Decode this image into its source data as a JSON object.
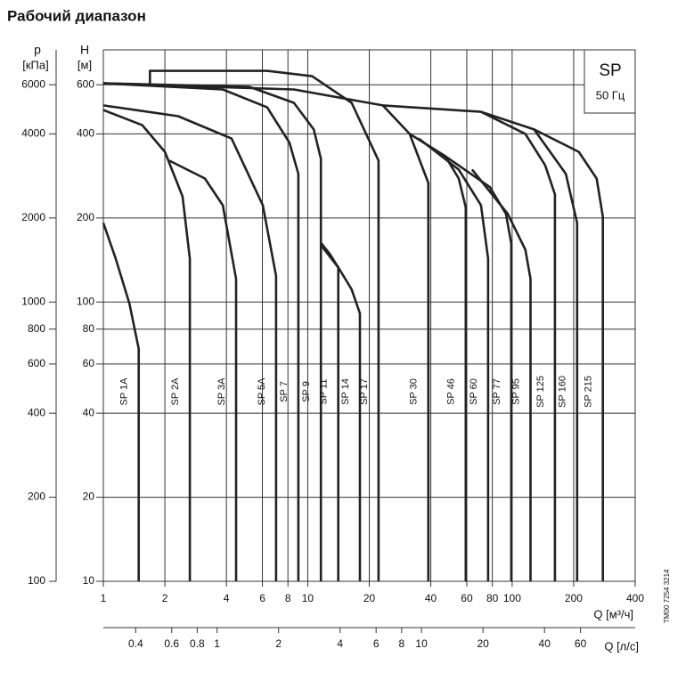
{
  "chart_data": {
    "type": "line",
    "title": "Рабочий диапазон",
    "x_scale": "log",
    "y_scale": "log",
    "grid": true,
    "color": "#222222",
    "x_label": "Q [м³/ч]",
    "x2_label": "Q [л/с]",
    "y_label": "H",
    "y_unit": "[м]",
    "y2_label": "p",
    "y2_unit": "[кПа]",
    "legend_box": {
      "title": "SP",
      "subtitle": "50 Гц"
    },
    "note": "TM00 7254 3214",
    "xlim": [
      1,
      400
    ],
    "xticks": [
      1,
      2,
      4,
      6,
      8,
      10,
      20,
      40,
      60,
      80,
      100,
      200,
      400
    ],
    "x2lim": [
      0.2778,
      111.1
    ],
    "x2ticks": [
      0.4,
      0.6,
      0.8,
      1,
      2,
      4,
      6,
      8,
      10,
      20,
      40,
      60
    ],
    "ylim": [
      10,
      800
    ],
    "yticks": [
      10,
      20,
      40,
      60,
      80,
      100,
      200,
      400,
      600
    ],
    "y2lim": [
      100,
      8000
    ],
    "y2ticks": [
      100,
      200,
      400,
      600,
      800,
      1000,
      2000,
      4000,
      6000
    ],
    "series": [
      {
        "name": "SP 1A",
        "x": [
          1,
          1.15,
          1.34,
          1.49,
          1.49
        ],
        "values": [
          192,
          143,
          99,
          68,
          10
        ]
      },
      {
        "name": "SP 2A",
        "x": [
          1,
          1.55,
          2.0,
          2.44,
          2.65,
          2.65
        ],
        "values": [
          487,
          430,
          345,
          239,
          143,
          10
        ]
      },
      {
        "name": "SP 3A",
        "x": [
          2.1,
          3.14,
          3.84,
          4.46,
          4.46
        ],
        "values": [
          321,
          277,
          222,
          121,
          10
        ]
      },
      {
        "name": "SP 5A",
        "x": [
          1,
          2.32,
          4.24,
          6.03,
          7.0,
          7.0
        ],
        "values": [
          506,
          463,
          385,
          222,
          124,
          10
        ]
      },
      {
        "name": "SP 7",
        "x": [
          1,
          3.84,
          6.33,
          8.14,
          9.0,
          9.0
        ],
        "values": [
          607,
          577,
          498,
          372,
          288,
          10
        ]
      },
      {
        "name": "SP 9",
        "x": [
          1,
          5.18,
          8.56,
          10.7,
          11.6,
          11.6
        ],
        "values": [
          607,
          590,
          517,
          415,
          326,
          10
        ]
      },
      {
        "name": "SP 11",
        "x": [
          11.6,
          12.8,
          14.1,
          14.1
        ],
        "values": [
          163,
          149,
          133,
          10
        ]
      },
      {
        "name": "SP 14",
        "x": [
          11.6,
          14.1,
          16.4,
          18.0,
          18.0
        ],
        "values": [
          160,
          133,
          111,
          91,
          10
        ]
      },
      {
        "name": "SP 17",
        "x": [
          1.69,
          1.69,
          6.33,
          10.5,
          16.4,
          22.2,
          22.2
        ],
        "values": [
          603,
          673,
          673,
          644,
          517,
          321,
          10
        ]
      },
      {
        "name": "SP 30",
        "x": [
          1,
          8.56,
          23.3,
          31.5,
          38.9,
          38.9
        ],
        "values": [
          607,
          577,
          506,
          400,
          267,
          10
        ]
      },
      {
        "name": "SP 46",
        "x": [
          31.5,
          47.1,
          54.8,
          59.3,
          59.3
        ],
        "values": [
          400,
          333,
          277,
          218,
          10
        ]
      },
      {
        "name": "SP 60",
        "x": [
          34.9,
          54.8,
          70.4,
          76.3,
          76.3
        ],
        "values": [
          385,
          298,
          222,
          143,
          10
        ]
      },
      {
        "name": "SP 77",
        "x": [
          47.1,
          77.8,
          93.2,
          99,
          99
        ],
        "values": [
          333,
          258,
          207,
          162,
          10
        ]
      },
      {
        "name": "SP 95",
        "x": [
          63.7,
          95.1,
          116,
          123,
          123
        ],
        "values": [
          298,
          207,
          154,
          121,
          10
        ]
      },
      {
        "name": "SP 125",
        "x": [
          23.3,
          70.4,
          116,
          145,
          162,
          162
        ],
        "values": [
          506,
          480,
          400,
          309,
          243,
          10
        ]
      },
      {
        "name": "SP 160",
        "x": [
          70.4,
          128,
          183,
          208,
          208
        ],
        "values": [
          480,
          415,
          288,
          192,
          10
        ]
      },
      {
        "name": "SP 215",
        "x": [
          128,
          212,
          259,
          278,
          278
        ],
        "values": [
          415,
          345,
          277,
          202,
          10
        ]
      }
    ]
  }
}
